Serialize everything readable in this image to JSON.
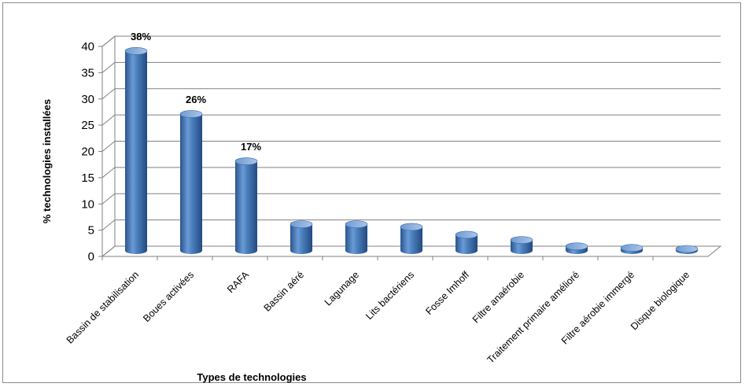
{
  "chart_data": {
    "type": "bar",
    "title": "",
    "xlabel": "Types de technologies",
    "ylabel": "% technologies installées",
    "categories": [
      "Bassin de stabilisation",
      "Boues activées",
      "RAFA",
      "Bassin aéré",
      "Lagunage",
      "Lits bactériens",
      "Fosse Imhoff",
      "Filtre anaérobie",
      "Traitement primaire amélioré",
      "Filtre aérobie immergé",
      "Disque biologique"
    ],
    "values": [
      38,
      26,
      17,
      5,
      5,
      4.5,
      3,
      2,
      0.8,
      0.5,
      0.3
    ],
    "data_labels": [
      "38%",
      "26%",
      "17%",
      null,
      null,
      null,
      null,
      null,
      null,
      null,
      null
    ],
    "ylim": [
      0,
      40
    ],
    "yticks": [
      "0",
      "5",
      "10",
      "15",
      "20",
      "25",
      "30",
      "35",
      "40"
    ],
    "grid": true,
    "legend": "none",
    "style": "3d-cylinder",
    "colors": {
      "bar": "#4a7ebb",
      "bar_dark": "#2a5590",
      "bar_light": "#8fb4e3",
      "grid": "#808080"
    }
  }
}
